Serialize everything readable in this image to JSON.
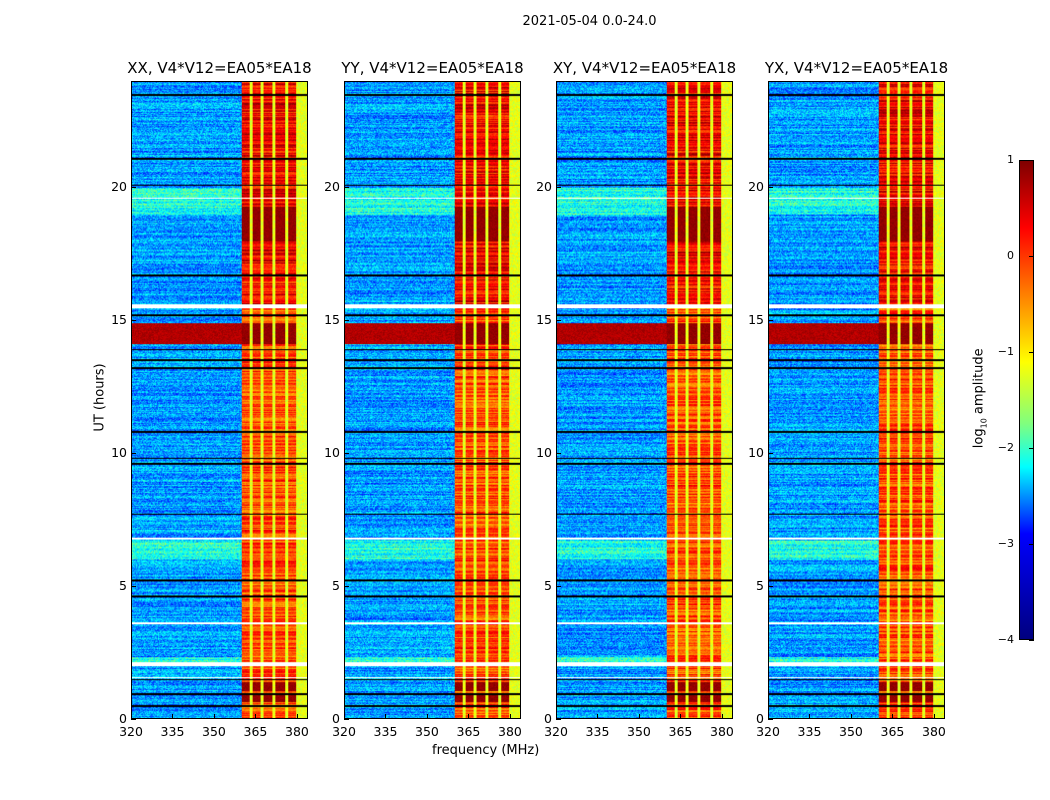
{
  "suptitle": "2021-05-04 0.0-24.0",
  "chart_data": {
    "type": "heatmap",
    "title": "2021-05-04 0.0-24.0",
    "xlabel": "frequency (MHz)",
    "ylabel": "UT (hours)",
    "xlim": [
      320,
      384
    ],
    "ylim": [
      0,
      24
    ],
    "xticks": [
      "320",
      "335",
      "350",
      "365",
      "380"
    ],
    "xtick_values": [
      320,
      335,
      350,
      365,
      380
    ],
    "yticks": [
      "0",
      "5",
      "10",
      "15",
      "20"
    ],
    "ytick_values": [
      0,
      5,
      10,
      15,
      20
    ],
    "panels": [
      {
        "title": "XX, V4*V12=EA05*EA18",
        "seed": 1
      },
      {
        "title": "YY, V4*V12=EA05*EA18",
        "seed": 2
      },
      {
        "title": "XY, V4*V12=EA05*EA18",
        "seed": 3
      },
      {
        "title": "YX, V4*V12=EA05*EA18",
        "seed": 4
      }
    ],
    "colorbar": {
      "label_main": "log",
      "label_sub": "10",
      "label_tail": " amplitude",
      "colormap": "jet",
      "range": [
        -4,
        1
      ],
      "ticks": [
        "1",
        "0",
        "−1",
        "−2",
        "−3",
        "−4"
      ],
      "tick_values": [
        1,
        0,
        -1,
        -2,
        -3,
        -4
      ]
    },
    "structure": {
      "background_log_amp": -2.6,
      "rfi_band_mhz": [
        360,
        380
      ],
      "rfi_log_amp": 0.2,
      "rfi_gap_lines_mhz": [
        363.5,
        367.5,
        372,
        376.5
      ],
      "edge_band_mhz": [
        380,
        384
      ],
      "strong_rfi_times_h": [
        [
          14.1,
          14.9
        ],
        [
          0.6,
          0.85
        ],
        [
          1.0,
          1.35
        ],
        [
          18.0,
          19.3
        ]
      ],
      "blank_times_h": [
        [
          15.45,
          15.6
        ],
        [
          1.95,
          2.1
        ],
        [
          1.5,
          1.55
        ],
        [
          3.55,
          3.6
        ],
        [
          6.75,
          6.8
        ],
        [
          19.6,
          19.65
        ]
      ],
      "dark_line_times_h": [
        0.45,
        0.9,
        1.45,
        4.6,
        5.2,
        7.7,
        9.6,
        9.8,
        10.8,
        13.2,
        13.5,
        13.9,
        15.2,
        16.7,
        20.1,
        21.1,
        23.5
      ],
      "quiet_elevated_times_h": [
        [
          19.0,
          20.0
        ],
        [
          2.0,
          2.3
        ],
        [
          6.0,
          6.7
        ]
      ]
    }
  }
}
